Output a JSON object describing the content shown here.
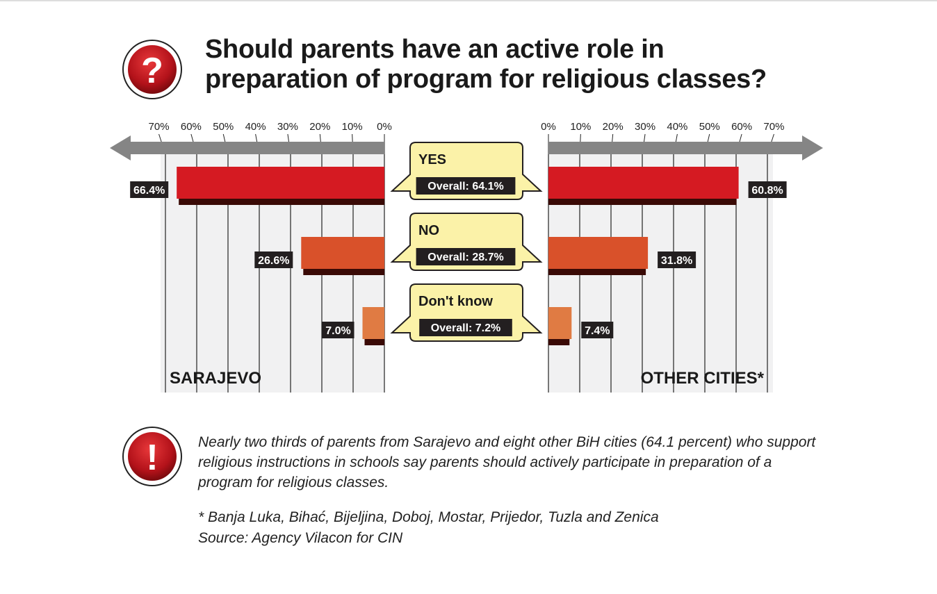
{
  "chart_data": {
    "type": "bar",
    "title": "Should parents have an active role in preparation of program for religious classes?",
    "title_lines": [
      "Should parents have an active role in",
      "preparation of program for religious classes?"
    ],
    "categories": [
      "YES",
      "NO",
      "Don't know"
    ],
    "overall": [
      "Overall: 64.1%",
      "Overall: 28.7%",
      "Overall: 7.2%"
    ],
    "overall_values": [
      64.1,
      28.7,
      7.2
    ],
    "series": [
      {
        "name": "SARAJEVO",
        "values": [
          66.4,
          26.6,
          7.0
        ],
        "labels": [
          "66.4%",
          "26.6%",
          "7.0%"
        ]
      },
      {
        "name": "OTHER CITIES*",
        "values": [
          60.8,
          31.8,
          7.4
        ],
        "labels": [
          "60.8%",
          "31.8%",
          "7.4%"
        ]
      }
    ],
    "ticks": [
      0,
      10,
      20,
      30,
      40,
      50,
      60,
      70
    ],
    "tick_labels": [
      "0%",
      "10%",
      "20%",
      "30%",
      "40%",
      "50%",
      "60%",
      "70%"
    ],
    "xlim": [
      0,
      70
    ],
    "grid": true,
    "colors": [
      "#d51a22",
      "#d9512a",
      "#e07b43"
    ],
    "shadow_color": "#3a0a06",
    "callout_color": "#fbf2a8"
  },
  "note": "Nearly two thirds of parents from Sarajevo and eight other BiH cities (64.1 percent) who support religious instructions in schools say parents should actively participate in preparation of a program for religious classes.",
  "footnote": "* Banja Luka, Bihać, Bijeljina, Doboj, Mostar, Prijedor, Tuzla and Zenica",
  "source": "Source: Agency Vilacon for CIN"
}
